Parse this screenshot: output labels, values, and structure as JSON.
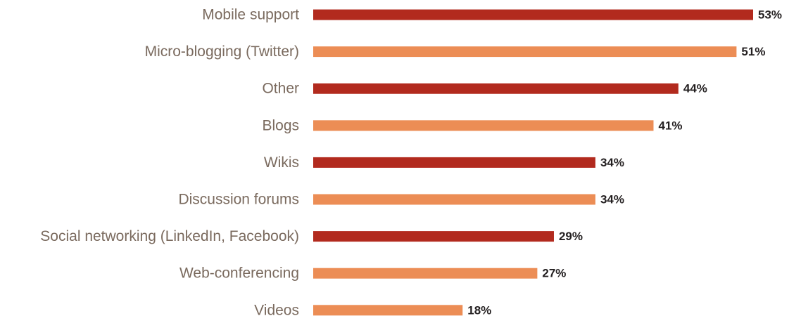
{
  "chart_data": {
    "type": "bar",
    "orientation": "horizontal",
    "categories": [
      "Mobile support",
      "Micro-blogging (Twitter)",
      "Other",
      "Blogs",
      "Wikis",
      "Discussion forums",
      "Social networking (LinkedIn, Facebook)",
      "Web-conferencing",
      "Videos"
    ],
    "values": [
      53,
      51,
      44,
      41,
      34,
      34,
      29,
      27,
      18
    ],
    "value_labels": [
      "53%",
      "51%",
      "44%",
      "41%",
      "34%",
      "34%",
      "29%",
      "27%",
      "18%"
    ],
    "bar_colors": [
      "#b22a1e",
      "#ec8d55",
      "#b22a1e",
      "#ec8d55",
      "#b22a1e",
      "#ec8d55",
      "#b22a1e",
      "#ec8d55",
      "#ec8d55"
    ],
    "xlim": [
      0,
      53
    ],
    "grid": false,
    "legend": "none",
    "title": "",
    "xlabel": "",
    "ylabel": ""
  },
  "colors": {
    "dark_bar": "#b22a1e",
    "light_bar": "#ec8d55",
    "category_text": "#7a6a5e",
    "value_text": "#231f20"
  }
}
